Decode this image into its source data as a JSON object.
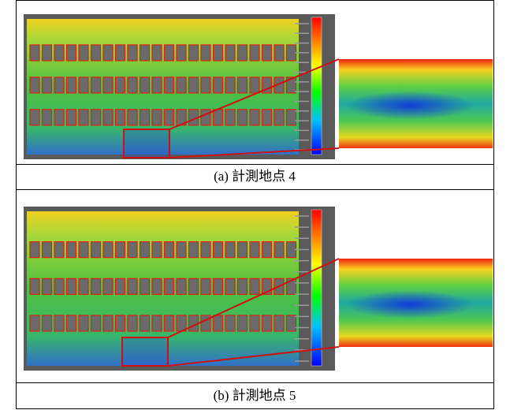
{
  "panels": [
    {
      "caption": "(a) 計測地点 4"
    },
    {
      "caption": "(b) 計測地点 5"
    }
  ]
}
